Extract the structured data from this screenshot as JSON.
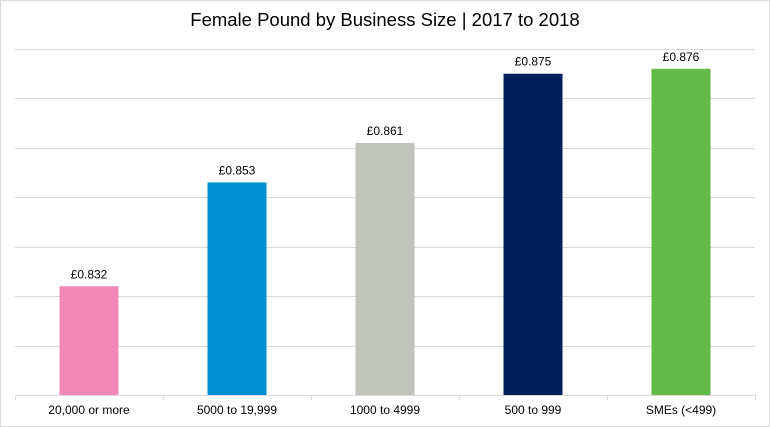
{
  "chart_data": {
    "type": "bar",
    "title": "Female Pound by Business Size | 2017 to 2018",
    "categories": [
      "20,000 or more",
      "5000 to 19,999",
      "1000 to 4999",
      "500 to 999",
      "SMEs (<499)"
    ],
    "values": [
      0.832,
      0.853,
      0.861,
      0.875,
      0.876
    ],
    "data_labels": [
      "£0.832",
      "£0.853",
      "£0.861",
      "£0.875",
      "£0.876"
    ],
    "colors": [
      "#f287b7",
      "#008fd3",
      "#c1c3bd",
      "#00205b",
      "#62bb46"
    ],
    "xlabel": "",
    "ylabel": "",
    "ylim": [
      0.81,
      0.88
    ],
    "grid_step": 0.01,
    "grid": true,
    "legend": "none"
  }
}
